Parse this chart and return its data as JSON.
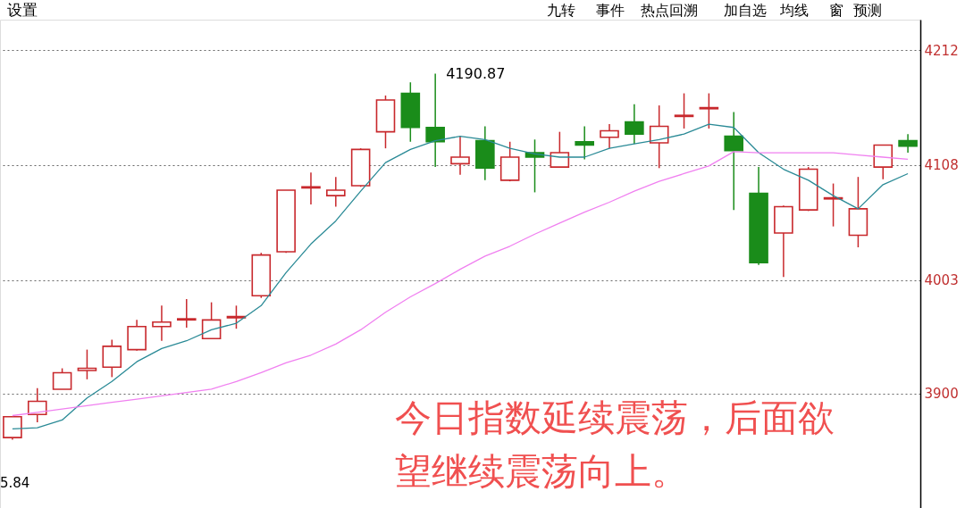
{
  "chart_data": {
    "type": "candlestick",
    "categories": [
      null,
      null,
      null,
      null,
      null,
      null,
      null,
      null,
      null,
      null,
      null,
      null,
      null,
      null,
      null,
      null,
      null,
      null,
      null,
      null,
      null,
      null,
      null,
      null,
      null,
      null,
      null,
      null,
      null,
      null,
      null,
      null,
      null,
      null,
      null,
      null,
      null
    ],
    "ohlc": [
      [
        3860,
        3879,
        3858,
        3879
      ],
      [
        3881,
        3905,
        3874,
        3893
      ],
      [
        3904,
        3923,
        3904,
        3919
      ],
      [
        3921,
        3940,
        3913,
        3923
      ],
      [
        3924,
        3949,
        3915,
        3943
      ],
      [
        3940,
        3967,
        3939,
        3961
      ],
      [
        3961,
        3980,
        3948,
        3965
      ],
      [
        3967,
        3986,
        3960,
        3968
      ],
      [
        3950,
        3983,
        3950,
        3967
      ],
      [
        3969,
        3980,
        3959,
        3970
      ],
      [
        3989,
        4028,
        3987,
        4026
      ],
      [
        4029,
        4085,
        4028,
        4085
      ],
      [
        4087,
        4101,
        4072,
        4088
      ],
      [
        4080,
        4097,
        4070,
        4085
      ],
      [
        4089,
        4123,
        4088,
        4122
      ],
      [
        4138,
        4171,
        4123,
        4167
      ],
      [
        4173,
        4183,
        4129,
        4142
      ],
      [
        4142,
        4190.87,
        4106,
        4129
      ],
      [
        4109,
        4134,
        4099,
        4115
      ],
      [
        4130,
        4143,
        4094,
        4105
      ],
      [
        4094,
        4129,
        4093,
        4115
      ],
      [
        4119,
        4131,
        4083,
        4115
      ],
      [
        4106,
        4138,
        4106,
        4119
      ],
      [
        4129,
        4143,
        4113,
        4126
      ],
      [
        4133,
        4145,
        4123,
        4139
      ],
      [
        4147,
        4163,
        4127,
        4136
      ],
      [
        4128,
        4162,
        4105,
        4143
      ],
      [
        4152,
        4173,
        4141,
        4153
      ],
      [
        4159,
        4173,
        4141,
        4160
      ],
      [
        4134,
        4156,
        4067,
        4121
      ],
      [
        4082,
        4106,
        4017,
        4019
      ],
      [
        4046,
        4071,
        4006,
        4070
      ],
      [
        4067,
        4106,
        4066,
        4104
      ],
      [
        4077,
        4091,
        4052,
        4078
      ],
      [
        4044,
        4097,
        4033,
        4068
      ],
      [
        4106,
        4126,
        4095,
        4126
      ],
      [
        4130,
        4136,
        4119,
        4125
      ]
    ],
    "colors": [
      "#c8282c",
      "#c8282c",
      "#c8282c",
      "#c8282c",
      "#c8282c",
      "#c8282c",
      "#c8282c",
      "#c8282c",
      "#c8282c",
      "#c8282c",
      "#c8282c",
      "#c8282c",
      "#c8282c",
      "#c8282c",
      "#c8282c",
      "#c8282c",
      "#1a8c1a",
      "#1a8c1a",
      "#c8282c",
      "#1a8c1a",
      "#c8282c",
      "#1a8c1a",
      "#c8282c",
      "#1a8c1a",
      "#c8282c",
      "#1a8c1a",
      "#c8282c",
      "#c8282c",
      "#c8282c",
      "#1a8c1a",
      "#1a8c1a",
      "#c8282c",
      "#c8282c",
      "#c8282c",
      "#c8282c",
      "#c8282c",
      "#1a8c1a"
    ],
    "series": [
      {
        "type": "line",
        "color": "#2a8a96",
        "values": [
          3868,
          3869,
          3876,
          3896,
          3911,
          3929,
          3941,
          3948,
          3958,
          3964,
          3980,
          4010,
          4036,
          4057,
          4084,
          4110,
          4122,
          4130,
          4134,
          4131,
          4123,
          4118,
          4115,
          4115,
          4123,
          4127,
          4131,
          4136,
          4145,
          4142,
          4119,
          4104,
          4094,
          4080,
          4068,
          4090,
          4100
        ]
      },
      {
        "type": "line",
        "color": "#f080f0",
        "values": [
          3880,
          3883,
          3886,
          3889,
          3892,
          3895,
          3898,
          3901,
          3904,
          3911,
          3919,
          3928,
          3935,
          3945,
          3958,
          3974,
          3988,
          4000,
          4013,
          4025,
          4034,
          4045,
          4055,
          4065,
          4074,
          4084,
          4093,
          4100,
          4107,
          4120,
          4119,
          4119,
          4119,
          4119,
          4117,
          4115,
          4113
        ]
      }
    ],
    "ylim": [
      3796,
      4240
    ],
    "yticks": [
      4212,
      4108,
      4003,
      3900
    ],
    "grid": "y",
    "tick_labels": "y",
    "annotations": [
      "设置",
      "九转",
      "事件",
      "热点回溯",
      "加自选",
      "均线",
      "窗",
      "预测",
      "5.84",
      "今日指数延续震荡，后面欲望继续震荡向上。",
      "4190.87"
    ]
  }
}
